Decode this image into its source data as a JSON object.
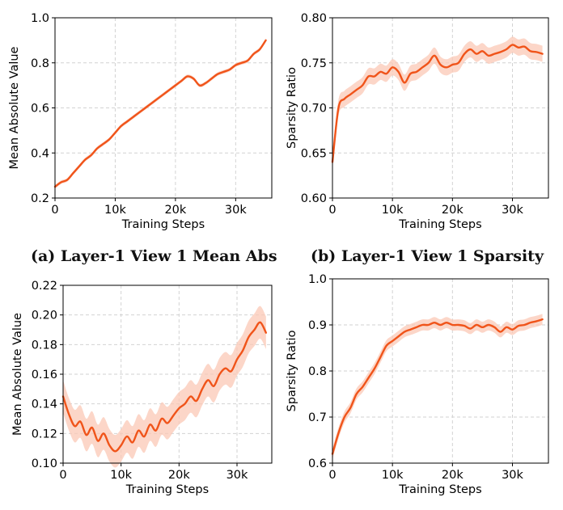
{
  "colors": {
    "line": "#f0541a",
    "band": "#fbc8b6",
    "grid": "#d2d2d2"
  },
  "captions": [
    "(a) Layer-1 View 1 Mean Abs",
    "(b) Layer-1 View 1 Sparsity"
  ],
  "chart_data": [
    {
      "type": "line",
      "title": "",
      "xlabel": "Training Steps",
      "ylabel": "Mean Absolute Value",
      "xlim": [
        0,
        36000
      ],
      "ylim": [
        0.2,
        1.0
      ],
      "xticks": [
        0,
        10000,
        20000,
        30000
      ],
      "xtick_labels": [
        "0",
        "10k",
        "20k",
        "30k"
      ],
      "yticks": [
        0.2,
        0.4,
        0.6,
        0.8,
        1.0
      ],
      "ytick_labels": [
        "0.2",
        "0.4",
        "0.6",
        "0.8",
        "1.0"
      ],
      "grid": true,
      "series": [
        {
          "x": [
            0,
            1000,
            2000,
            3000,
            4000,
            5000,
            6000,
            7000,
            8000,
            9000,
            10000,
            11000,
            12000,
            13000,
            14000,
            15000,
            16000,
            17000,
            18000,
            19000,
            20000,
            21000,
            22000,
            23000,
            24000,
            25000,
            26000,
            27000,
            28000,
            29000,
            30000,
            31000,
            32000,
            33000,
            34000,
            35000
          ],
          "y": [
            0.25,
            0.27,
            0.28,
            0.31,
            0.34,
            0.37,
            0.39,
            0.42,
            0.44,
            0.46,
            0.49,
            0.52,
            0.54,
            0.56,
            0.58,
            0.6,
            0.62,
            0.64,
            0.66,
            0.68,
            0.7,
            0.72,
            0.74,
            0.73,
            0.7,
            0.71,
            0.73,
            0.75,
            0.76,
            0.77,
            0.79,
            0.8,
            0.81,
            0.84,
            0.86,
            0.9
          ],
          "band": 0.008
        }
      ]
    },
    {
      "type": "line",
      "title": "",
      "xlabel": "Training Steps",
      "ylabel": "Sparsity Ratio",
      "xlim": [
        0,
        36000
      ],
      "ylim": [
        0.6,
        0.8
      ],
      "xticks": [
        0,
        10000,
        20000,
        30000
      ],
      "xtick_labels": [
        "0",
        "10k",
        "20k",
        "30k"
      ],
      "yticks": [
        0.6,
        0.65,
        0.7,
        0.75,
        0.8
      ],
      "ytick_labels": [
        "0.60",
        "0.65",
        "0.70",
        "0.75",
        "0.80"
      ],
      "grid": true,
      "series": [
        {
          "x": [
            0,
            1000,
            2000,
            3000,
            4000,
            5000,
            6000,
            7000,
            8000,
            9000,
            10000,
            11000,
            12000,
            13000,
            14000,
            15000,
            16000,
            17000,
            18000,
            19000,
            20000,
            21000,
            22000,
            23000,
            24000,
            25000,
            26000,
            27000,
            28000,
            29000,
            30000,
            31000,
            32000,
            33000,
            34000,
            35000
          ],
          "y": [
            0.64,
            0.7,
            0.71,
            0.715,
            0.72,
            0.725,
            0.735,
            0.735,
            0.74,
            0.738,
            0.745,
            0.74,
            0.728,
            0.738,
            0.74,
            0.745,
            0.75,
            0.758,
            0.748,
            0.745,
            0.748,
            0.75,
            0.76,
            0.765,
            0.76,
            0.763,
            0.758,
            0.76,
            0.762,
            0.765,
            0.77,
            0.767,
            0.768,
            0.763,
            0.762,
            0.76
          ],
          "band": 0.009
        }
      ]
    },
    {
      "type": "line",
      "title": "",
      "xlabel": "Training Steps",
      "ylabel": "Mean Absolute Value",
      "xlim": [
        0,
        36000
      ],
      "ylim": [
        0.1,
        0.22
      ],
      "xticks": [
        0,
        10000,
        20000,
        30000
      ],
      "xtick_labels": [
        "0",
        "10k",
        "20k",
        "30k"
      ],
      "yticks": [
        0.1,
        0.12,
        0.14,
        0.16,
        0.18,
        0.2,
        0.22
      ],
      "ytick_labels": [
        "0.10",
        "0.12",
        "0.14",
        "0.16",
        "0.18",
        "0.20",
        "0.22"
      ],
      "grid": true,
      "series": [
        {
          "x": [
            0,
            1000,
            2000,
            3000,
            4000,
            5000,
            6000,
            7000,
            8000,
            9000,
            10000,
            11000,
            12000,
            13000,
            14000,
            15000,
            16000,
            17000,
            18000,
            19000,
            20000,
            21000,
            22000,
            23000,
            24000,
            25000,
            26000,
            27000,
            28000,
            29000,
            30000,
            31000,
            32000,
            33000,
            34000,
            35000
          ],
          "y": [
            0.145,
            0.133,
            0.125,
            0.128,
            0.119,
            0.124,
            0.115,
            0.12,
            0.112,
            0.108,
            0.112,
            0.118,
            0.114,
            0.122,
            0.118,
            0.126,
            0.122,
            0.13,
            0.127,
            0.132,
            0.137,
            0.14,
            0.145,
            0.142,
            0.15,
            0.156,
            0.152,
            0.16,
            0.164,
            0.162,
            0.17,
            0.176,
            0.185,
            0.19,
            0.195,
            0.188
          ],
          "band": 0.011
        }
      ]
    },
    {
      "type": "line",
      "title": "",
      "xlabel": "Training Steps",
      "ylabel": "Sparsity Ratio",
      "xlim": [
        0,
        36000
      ],
      "ylim": [
        0.6,
        1.0
      ],
      "xticks": [
        0,
        10000,
        20000,
        30000
      ],
      "xtick_labels": [
        "0",
        "10k",
        "20k",
        "30k"
      ],
      "yticks": [
        0.6,
        0.7,
        0.8,
        0.9,
        1.0
      ],
      "ytick_labels": [
        "0.6",
        "0.7",
        "0.8",
        "0.9",
        "1.0"
      ],
      "grid": true,
      "series": [
        {
          "x": [
            0,
            1000,
            2000,
            3000,
            4000,
            5000,
            6000,
            7000,
            8000,
            9000,
            10000,
            11000,
            12000,
            13000,
            14000,
            15000,
            16000,
            17000,
            18000,
            19000,
            20000,
            21000,
            22000,
            23000,
            24000,
            25000,
            26000,
            27000,
            28000,
            29000,
            30000,
            31000,
            32000,
            33000,
            34000,
            35000
          ],
          "y": [
            0.62,
            0.665,
            0.7,
            0.72,
            0.75,
            0.765,
            0.785,
            0.805,
            0.83,
            0.855,
            0.865,
            0.875,
            0.885,
            0.89,
            0.895,
            0.9,
            0.9,
            0.905,
            0.9,
            0.905,
            0.9,
            0.9,
            0.898,
            0.892,
            0.9,
            0.895,
            0.9,
            0.895,
            0.885,
            0.895,
            0.89,
            0.898,
            0.9,
            0.905,
            0.908,
            0.912
          ],
          "band": 0.012
        }
      ]
    }
  ]
}
